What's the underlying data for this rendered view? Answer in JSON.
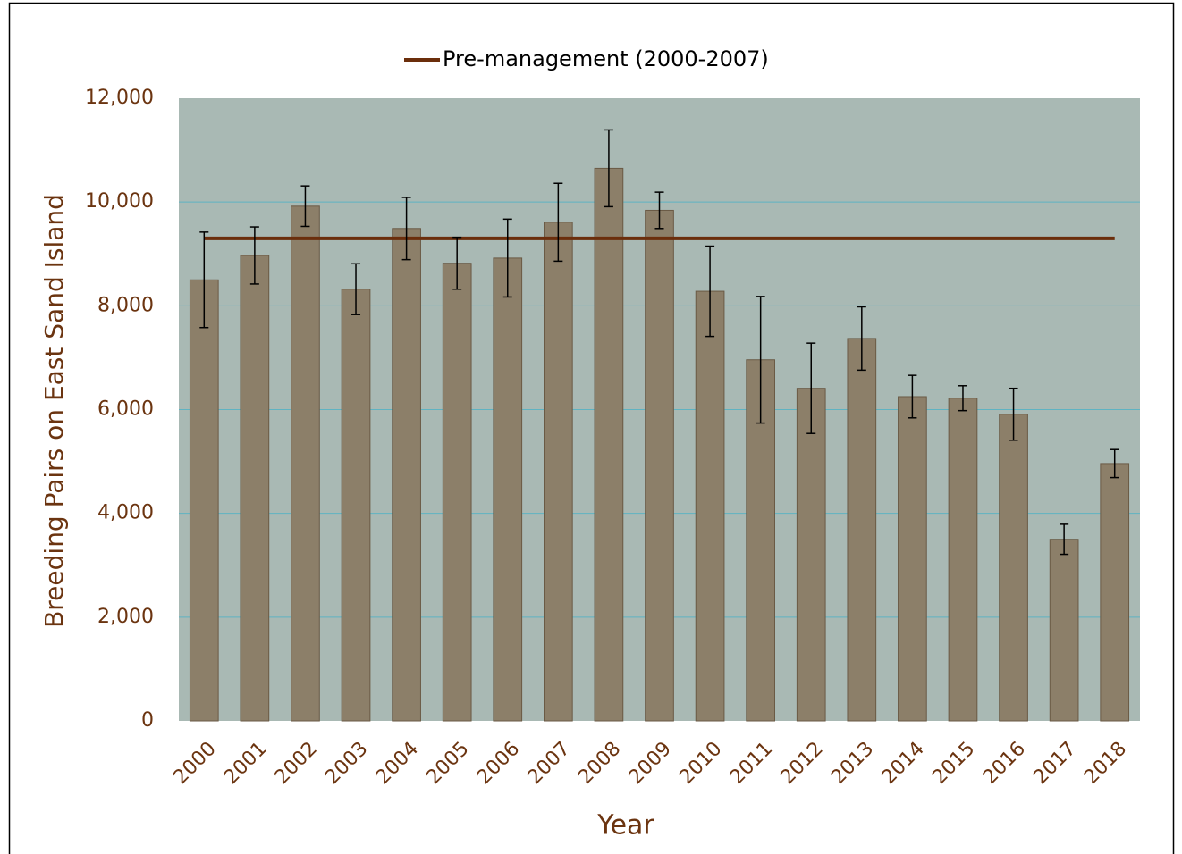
{
  "chart_data": {
    "type": "bar",
    "x_label": "Year",
    "y_label": "Breeding Pairs on East Sand Island",
    "categories": [
      "2000",
      "2001",
      "2002",
      "2003",
      "2004",
      "2005",
      "2006",
      "2007",
      "2008",
      "2009",
      "2010",
      "2011",
      "2012",
      "2013",
      "2014",
      "2015",
      "2016",
      "2017",
      "2018"
    ],
    "values": [
      8500,
      8970,
      9920,
      8320,
      9490,
      8820,
      8920,
      9610,
      10650,
      9840,
      8280,
      6960,
      6410,
      7370,
      6250,
      6220,
      5910,
      3500,
      4960
    ],
    "errors": [
      920,
      550,
      390,
      490,
      600,
      500,
      750,
      750,
      740,
      350,
      870,
      1220,
      870,
      610,
      410,
      240,
      500,
      290,
      270
    ],
    "color": "#8c7f69",
    "reference_line": {
      "name": "Pre-management (2000-2007)",
      "value": 9300,
      "color": "#6b2e0c"
    },
    "ylim": [
      0,
      12000
    ],
    "yticks": [
      0,
      {
        "value": 2000,
        "label": "2,000"
      },
      {
        "value": 4000,
        "label": "4,000"
      },
      {
        "value": 6000,
        "label": "6,000"
      },
      {
        "value": 8000,
        "label": "8,000"
      },
      {
        "value": 10000,
        "label": "10,000"
      },
      {
        "value": 12000,
        "label": "12,000"
      }
    ],
    "grid": true
  }
}
